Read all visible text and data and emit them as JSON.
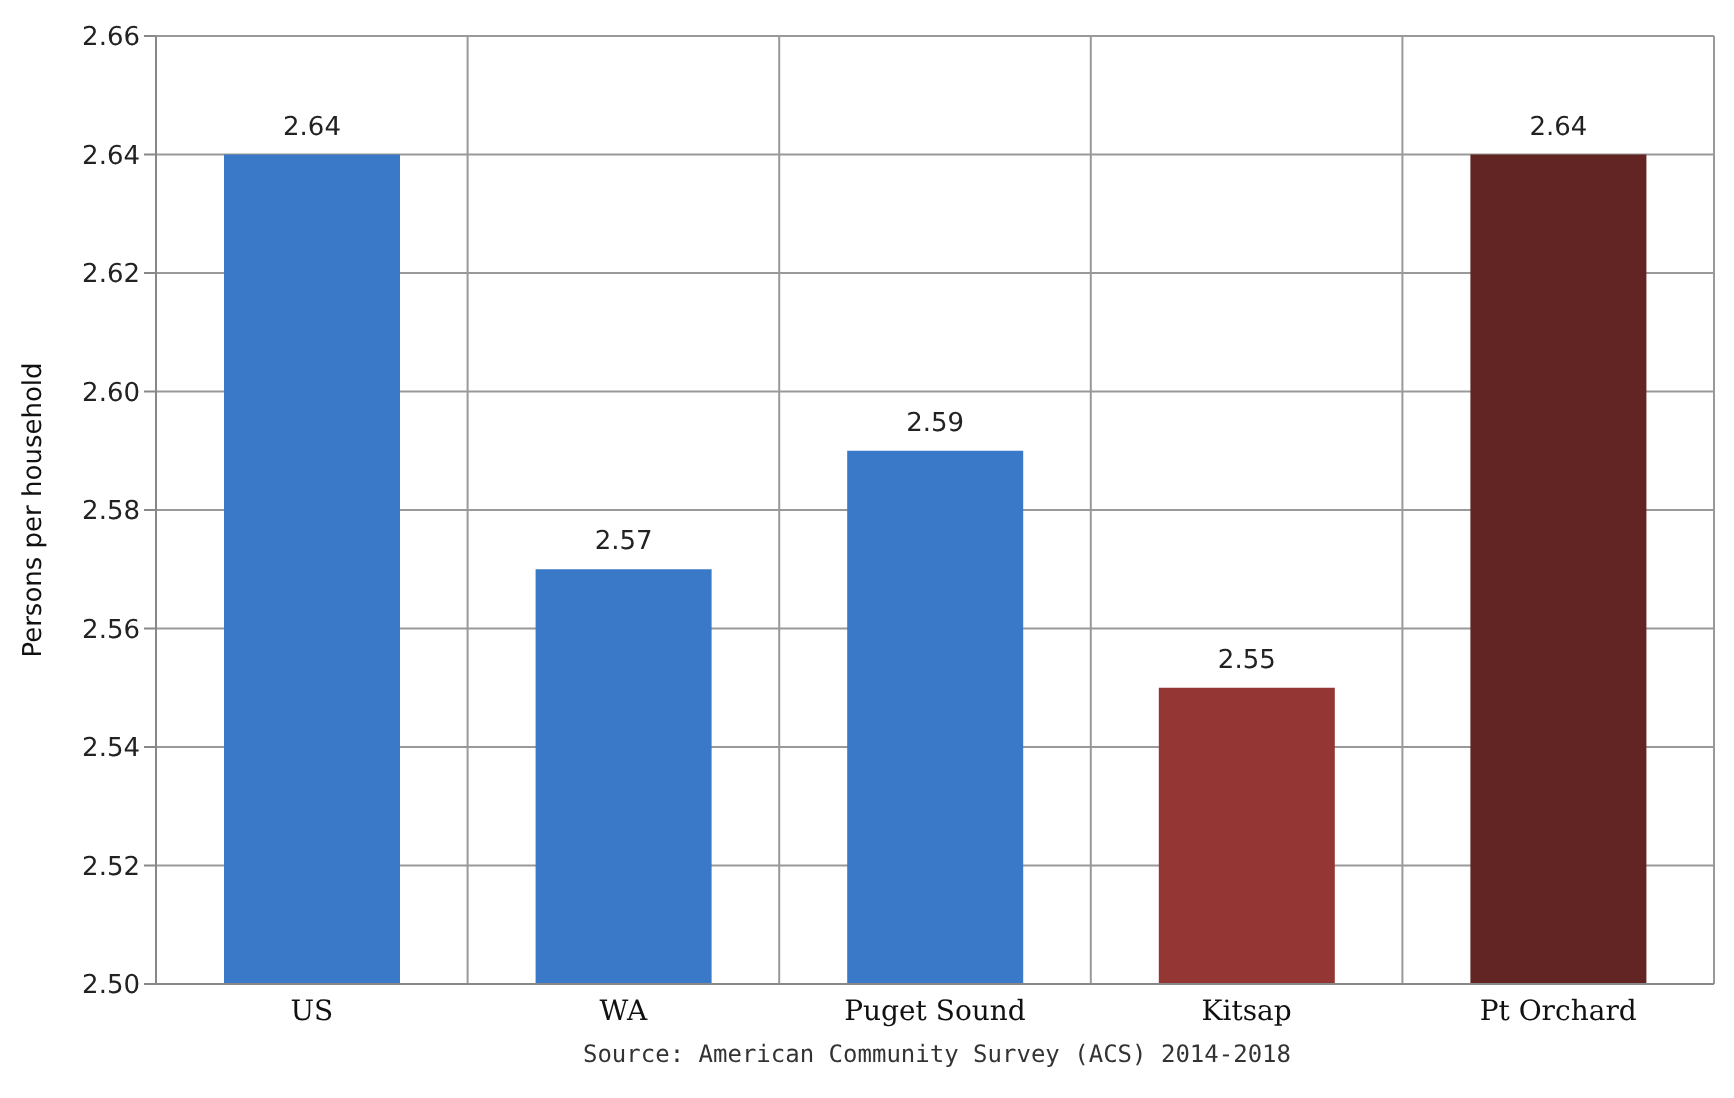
{
  "chart_data": {
    "type": "bar",
    "categories": [
      "US",
      "WA",
      "Puget Sound",
      "Kitsap",
      "Pt Orchard"
    ],
    "values": [
      2.64,
      2.57,
      2.59,
      2.55,
      2.64
    ],
    "colors": [
      "#3a78c8",
      "#3a78c8",
      "#3a78c8",
      "#943634",
      "#632523"
    ],
    "ylabel": "Persons per household",
    "ylim": [
      2.5,
      2.66
    ],
    "yticks": [
      {
        "value": 2.5,
        "label": "2.50"
      },
      2.52,
      2.54,
      2.56,
      2.58,
      {
        "value": 2.6,
        "label": "2.60"
      },
      2.62,
      2.64,
      2.66
    ],
    "grid": true,
    "data_labels": true,
    "annotations": [
      "Source: American Community Survey (ACS) 2014-2018"
    ]
  }
}
